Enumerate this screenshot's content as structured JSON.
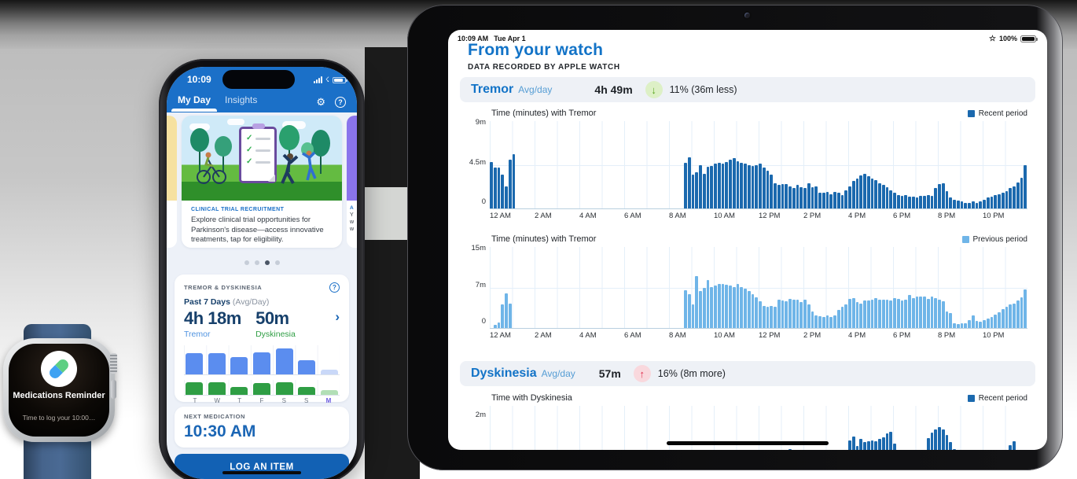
{
  "colors": {
    "phone_header": "#1b70c8",
    "phone_button": "#1261b4",
    "ipad_blue": "#1273c7",
    "recent_bar": "#1b69ae",
    "previous_bar": "#6fb5e8",
    "bar_blue": "#5b8def",
    "bar_blue_faded": "#c9d8f8",
    "bar_green": "#2f9e44",
    "bar_green_faded": "#b2dfb6",
    "ring_navy": "#0e3f70",
    "ring_purple": "#7b6cf0",
    "down_badge_bg": "#ddf0c6",
    "down_badge_arrow": "#57a51d",
    "up_badge_bg": "#f9d8dd",
    "up_badge_arrow": "#e02d4e"
  },
  "watch": {
    "title": "Medications Reminder",
    "subtitle": "Time to log your 10:00…",
    "icon": "pill-icon"
  },
  "phone": {
    "status": {
      "time": "10:09"
    },
    "tabs": [
      {
        "label": "My Day"
      },
      {
        "label": "Insights"
      }
    ],
    "carousel": {
      "card": {
        "kicker": "CLINICAL TRIAL RECRUITMENT",
        "body": "Explore clinical trial opportunities for Parkinson's disease—access innovative treatments, tap for eligibility."
      },
      "right_card_partial": [
        "A",
        "Y",
        "w",
        "w"
      ],
      "dots": {
        "count": 4,
        "active_index": 2
      }
    },
    "tremor_card": {
      "title": "TREMOR & DYSKINESIA",
      "period_label": "Past 7 Days",
      "period_sub": "(Avg/Day)",
      "tremor_value": "4h 18m",
      "tremor_label": "Tremor",
      "dysk_value": "50m",
      "dysk_label": "Dyskinesia",
      "days": [
        "T",
        "W",
        "T",
        "F",
        "S",
        "S",
        "M"
      ],
      "highlight_day_index": 6,
      "tremor_bars_pct": [
        78,
        78,
        64,
        81,
        97,
        53,
        17
      ],
      "dysk_bars_pct": [
        100,
        100,
        64,
        91,
        100,
        64,
        36
      ],
      "rings": {
        "count": 7,
        "partial_index": 6
      }
    },
    "medication": {
      "label": "NEXT MEDICATION",
      "time": "10:30 AM"
    },
    "cta_label": "LOG AN ITEM"
  },
  "ipad": {
    "status": {
      "time": "10:09 AM",
      "date": "Tue Apr 1",
      "battery": "100%"
    },
    "title": "From your watch",
    "subtitle": "DATA RECORDED BY APPLE WATCH",
    "tremor_row": {
      "name": "Tremor",
      "avg": "Avg/day",
      "value": "4h 49m",
      "change": "11% (36m less)",
      "direction": "down"
    },
    "dysk_row": {
      "name": "Dyskinesia",
      "avg": "Avg/day",
      "value": "57m",
      "change": "16% (8m more)",
      "direction": "up"
    }
  },
  "chart_data": [
    {
      "type": "bar",
      "id": "tremor-recent",
      "title": "Time (minutes) with Tremor",
      "legend": "Recent period",
      "color": "#1b69ae",
      "ylim": 9,
      "y_ticks": [
        "9m",
        "4.5m",
        "0"
      ],
      "x_ticks": [
        "12 AM",
        "2 AM",
        "4 AM",
        "6 AM",
        "8 AM",
        "10 AM",
        "12 PM",
        "2 PM",
        "4 PM",
        "6 PM",
        "8 PM",
        "10 PM"
      ],
      "x_interval_minutes": 10,
      "grid": "hourly",
      "values": [
        4.8,
        4.2,
        4.2,
        3.5,
        2.3,
        5.0,
        5.6,
        0,
        0,
        0,
        0,
        0,
        0,
        0,
        0,
        0,
        0,
        0,
        0,
        0,
        0,
        0,
        0,
        0,
        0,
        0,
        0,
        0,
        0,
        0,
        0,
        0,
        0,
        0,
        0,
        0,
        0,
        0,
        0,
        0,
        0,
        0,
        0,
        0,
        0,
        0,
        0,
        0,
        0,
        0,
        0,
        0,
        4.7,
        5.3,
        3.5,
        3.7,
        4.5,
        3.6,
        4.3,
        4.4,
        4.6,
        4.7,
        4.6,
        4.8,
        5.0,
        5.2,
        4.9,
        4.7,
        4.6,
        4.5,
        4.4,
        4.5,
        4.6,
        4.2,
        3.9,
        3.5,
        2.6,
        2.4,
        2.5,
        2.5,
        2.3,
        2.1,
        2.4,
        2.2,
        2.1,
        2.6,
        2.2,
        2.3,
        1.6,
        1.6,
        1.7,
        1.5,
        1.7,
        1.6,
        1.4,
        1.9,
        2.3,
        2.8,
        3.1,
        3.4,
        3.6,
        3.3,
        3.1,
        2.9,
        2.6,
        2.4,
        2.2,
        1.9,
        1.6,
        1.4,
        1.3,
        1.4,
        1.2,
        1.2,
        1.1,
        1.3,
        1.3,
        1.4,
        1.3,
        2.1,
        2.5,
        2.6,
        1.8,
        1.1,
        0.9,
        0.8,
        0.7,
        0.6,
        0.6,
        0.7,
        0.6,
        0.7,
        0.9,
        1.1,
        1.2,
        1.4,
        1.5,
        1.6,
        1.8,
        2.1,
        2.3,
        2.7,
        3.2,
        4.5
      ]
    },
    {
      "type": "bar",
      "id": "tremor-previous",
      "title": "Time (minutes) with Tremor",
      "legend": "Previous period",
      "color": "#6fb5e8",
      "ylim": 15,
      "y_ticks": [
        "15m",
        "7m",
        "0"
      ],
      "x_ticks": [
        "12 AM",
        "2 AM",
        "4 AM",
        "6 AM",
        "8 AM",
        "10 AM",
        "12 PM",
        "2 PM",
        "4 PM",
        "6 PM",
        "8 PM",
        "10 PM"
      ],
      "x_interval_minutes": 10,
      "grid": "hourly",
      "values": [
        0,
        0.6,
        1.0,
        4.4,
        6.4,
        4.5,
        0,
        0,
        0,
        0,
        0,
        0,
        0,
        0,
        0,
        0,
        0,
        0,
        0,
        0,
        0,
        0,
        0,
        0,
        0,
        0,
        0,
        0,
        0,
        0,
        0,
        0,
        0,
        0,
        0,
        0,
        0,
        0,
        0,
        0,
        0,
        0,
        0,
        0,
        0,
        0,
        0,
        0,
        0,
        0,
        0,
        0,
        7.0,
        6.3,
        4.4,
        9.6,
        6.9,
        7.4,
        8.9,
        7.6,
        7.9,
        8.2,
        8.1,
        8.0,
        7.9,
        7.6,
        8.1,
        7.6,
        7.3,
        6.9,
        6.3,
        5.7,
        4.9,
        4.1,
        4.0,
        4.1,
        4.0,
        5.3,
        5.1,
        5.0,
        5.4,
        5.3,
        5.2,
        4.8,
        5.2,
        4.3,
        3.1,
        2.4,
        2.2,
        2.1,
        2.3,
        2.0,
        2.3,
        3.3,
        3.9,
        4.4,
        5.4,
        5.6,
        4.8,
        4.5,
        5.1,
        5.1,
        5.3,
        5.5,
        5.2,
        5.2,
        5.2,
        5.1,
        5.5,
        5.4,
        5.1,
        5.3,
        6.1,
        5.6,
        5.9,
        5.9,
        5.8,
        5.4,
        5.9,
        5.6,
        5.3,
        5.0,
        3.1,
        2.7,
        0.9,
        0.8,
        0.9,
        0.9,
        1.4,
        2.3,
        1.3,
        1.2,
        1.4,
        1.7,
        2.1,
        2.5,
        2.9,
        3.5,
        4.0,
        4.4,
        4.5,
        5.1,
        5.7,
        7.2
      ]
    },
    {
      "type": "bar",
      "id": "dyskinesia-recent",
      "title": "Time with Dyskinesia",
      "legend": "Recent period",
      "color": "#1b69ae",
      "ylim": 2.4,
      "y_ticks": [
        "2m"
      ],
      "x_ticks": null,
      "x_interval_minutes": 10,
      "grid": "hourly",
      "note": "bottom of chart cut off by screen edge",
      "values": [
        0,
        0,
        0,
        0,
        0,
        0,
        0,
        0,
        0,
        0,
        0,
        0,
        0,
        0,
        0,
        0,
        0,
        0,
        0,
        0,
        0,
        0,
        0,
        0,
        0,
        0,
        0,
        0,
        0,
        0,
        0,
        0,
        0,
        0,
        0,
        0,
        0,
        0,
        0,
        0,
        0,
        0,
        0,
        0,
        0,
        0,
        0,
        0,
        0,
        0,
        0,
        0,
        0,
        0,
        0,
        0,
        0,
        0,
        0,
        0,
        0,
        0,
        0,
        0,
        0,
        0,
        0,
        0,
        0,
        0,
        0,
        0,
        0,
        0,
        0,
        0,
        0,
        0,
        0,
        0,
        0.12,
        0,
        0,
        0,
        0,
        0,
        0,
        0,
        0,
        0,
        0,
        0,
        0,
        0,
        0,
        0,
        0.6,
        0.8,
        0.3,
        0.65,
        0.5,
        0.55,
        0.6,
        0.55,
        0.65,
        0.75,
        0.95,
        1.05,
        0.4,
        0,
        0,
        0,
        0,
        0,
        0,
        0,
        0,
        0.7,
        1.0,
        1.15,
        1.3,
        1.15,
        0.85,
        0.5,
        0.12,
        0,
        0,
        0,
        0,
        0.06,
        0,
        0,
        0,
        0,
        0,
        0,
        0,
        0,
        0,
        0.35,
        0.55,
        0,
        0,
        0
      ]
    }
  ]
}
